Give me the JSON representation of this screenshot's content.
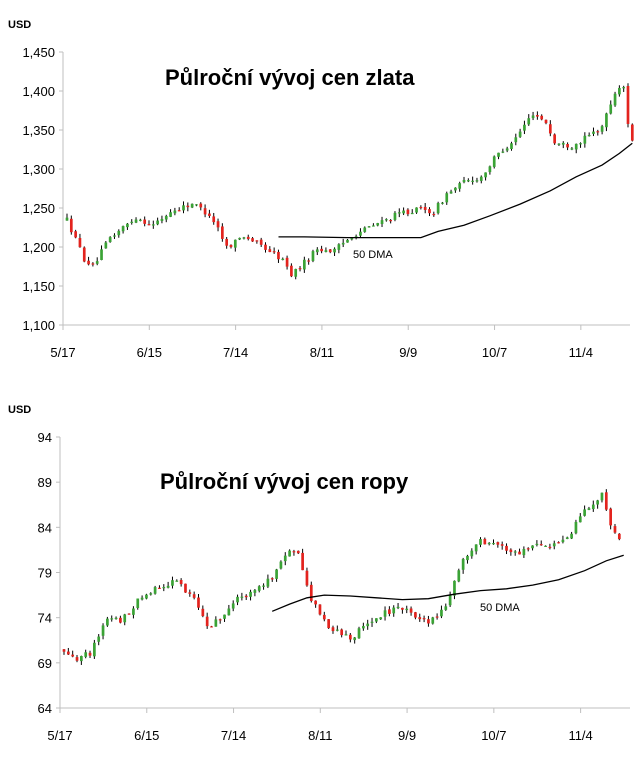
{
  "chart_data": [
    {
      "id": "gold",
      "type": "candlestick",
      "title": "Půlroční vývoj cen zlata",
      "unit": "USD",
      "ylim": [
        1100,
        1450
      ],
      "yticks": [
        "1,100",
        "1,150",
        "1,200",
        "1,250",
        "1,300",
        "1,350",
        "1,400",
        "1,450"
      ],
      "ytick_values": [
        1100,
        1150,
        1200,
        1250,
        1300,
        1350,
        1400,
        1450
      ],
      "x_labels": [
        "5/17",
        "6/15",
        "7/14",
        "8/11",
        "9/9",
        "10/7",
        "11/4"
      ],
      "x_label_positions": [
        0,
        20,
        40,
        60,
        80,
        100,
        120
      ],
      "x_count": 131,
      "grid": false,
      "dma_label": "50 DMA",
      "colors": {
        "up": "#3aa335",
        "down": "#e3231e",
        "line": "#000000"
      },
      "price_path": [
        [
          0,
          1235
        ],
        [
          4,
          1185
        ],
        [
          6,
          1175
        ],
        [
          10,
          1212
        ],
        [
          16,
          1238
        ],
        [
          20,
          1228
        ],
        [
          24,
          1245
        ],
        [
          29,
          1256
        ],
        [
          33,
          1242
        ],
        [
          35,
          1225
        ],
        [
          37,
          1200
        ],
        [
          41,
          1215
        ],
        [
          44,
          1205
        ],
        [
          47,
          1195
        ],
        [
          50,
          1183
        ],
        [
          52,
          1165
        ],
        [
          55,
          1180
        ],
        [
          58,
          1198
        ],
        [
          62,
          1195
        ],
        [
          66,
          1215
        ],
        [
          70,
          1225
        ],
        [
          74,
          1235
        ],
        [
          78,
          1245
        ],
        [
          82,
          1248
        ],
        [
          85,
          1245
        ],
        [
          88,
          1268
        ],
        [
          92,
          1283
        ],
        [
          96,
          1290
        ],
        [
          100,
          1320
        ],
        [
          104,
          1340
        ],
        [
          108,
          1372
        ],
        [
          111,
          1360
        ],
        [
          113,
          1333
        ],
        [
          117,
          1330
        ],
        [
          121,
          1342
        ],
        [
          124,
          1355
        ],
        [
          127,
          1398
        ],
        [
          129,
          1405
        ],
        [
          130,
          1360
        ],
        [
          131,
          1338
        ]
      ],
      "dma_path": [
        [
          49,
          1213
        ],
        [
          55,
          1213
        ],
        [
          65,
          1212
        ],
        [
          74,
          1212
        ],
        [
          82,
          1212
        ],
        [
          86,
          1220
        ],
        [
          92,
          1228
        ],
        [
          98,
          1240
        ],
        [
          105,
          1255
        ],
        [
          112,
          1272
        ],
        [
          118,
          1290
        ],
        [
          124,
          1305
        ],
        [
          128,
          1320
        ],
        [
          131,
          1333
        ]
      ]
    },
    {
      "id": "oil",
      "type": "candlestick",
      "title": "Půlroční vývoj cen ropy",
      "unit": "USD",
      "ylim": [
        64,
        94
      ],
      "yticks": [
        "64",
        "69",
        "74",
        "79",
        "84",
        "89",
        "94"
      ],
      "ytick_values": [
        64,
        69,
        74,
        79,
        84,
        89,
        94
      ],
      "x_labels": [
        "5/17",
        "6/15",
        "7/14",
        "8/11",
        "9/9",
        "10/7",
        "11/4"
      ],
      "x_label_positions": [
        0,
        20,
        40,
        60,
        80,
        100,
        120
      ],
      "x_count": 131,
      "grid": false,
      "dma_label": "50 DMA",
      "colors": {
        "up": "#3aa335",
        "down": "#e3231e",
        "line": "#000000"
      },
      "price_path": [
        [
          0,
          70.5
        ],
        [
          3,
          69.5
        ],
        [
          6,
          70.0
        ],
        [
          10,
          74.0
        ],
        [
          13,
          73.5
        ],
        [
          18,
          76.5
        ],
        [
          22,
          77.5
        ],
        [
          26,
          78.0
        ],
        [
          30,
          76.0
        ],
        [
          33,
          73.0
        ],
        [
          36,
          74.0
        ],
        [
          40,
          76.0
        ],
        [
          44,
          77.0
        ],
        [
          48,
          78.5
        ],
        [
          52,
          81.5
        ],
        [
          54,
          81.0
        ],
        [
          57,
          76.0
        ],
        [
          60,
          73.5
        ],
        [
          63,
          72.5
        ],
        [
          66,
          71.5
        ],
        [
          70,
          73.5
        ],
        [
          74,
          74.5
        ],
        [
          77,
          75.0
        ],
        [
          80,
          74.5
        ],
        [
          84,
          73.5
        ],
        [
          88,
          75.0
        ],
        [
          92,
          80.5
        ],
        [
          96,
          82.5
        ],
        [
          100,
          82.0
        ],
        [
          104,
          81.0
        ],
        [
          108,
          82.0
        ],
        [
          112,
          81.5
        ],
        [
          117,
          83.5
        ],
        [
          120,
          86.0
        ],
        [
          124,
          87.5
        ],
        [
          126,
          84.0
        ],
        [
          128,
          82.5
        ]
      ],
      "dma_path": [
        [
          48,
          74.7
        ],
        [
          52,
          75.5
        ],
        [
          56,
          76.2
        ],
        [
          60,
          76.5
        ],
        [
          66,
          76.4
        ],
        [
          72,
          76.2
        ],
        [
          78,
          76.0
        ],
        [
          84,
          76.1
        ],
        [
          90,
          76.6
        ],
        [
          96,
          77.0
        ],
        [
          102,
          77.2
        ],
        [
          108,
          77.6
        ],
        [
          114,
          78.2
        ],
        [
          120,
          79.2
        ],
        [
          125,
          80.3
        ],
        [
          129,
          80.9
        ]
      ]
    }
  ]
}
